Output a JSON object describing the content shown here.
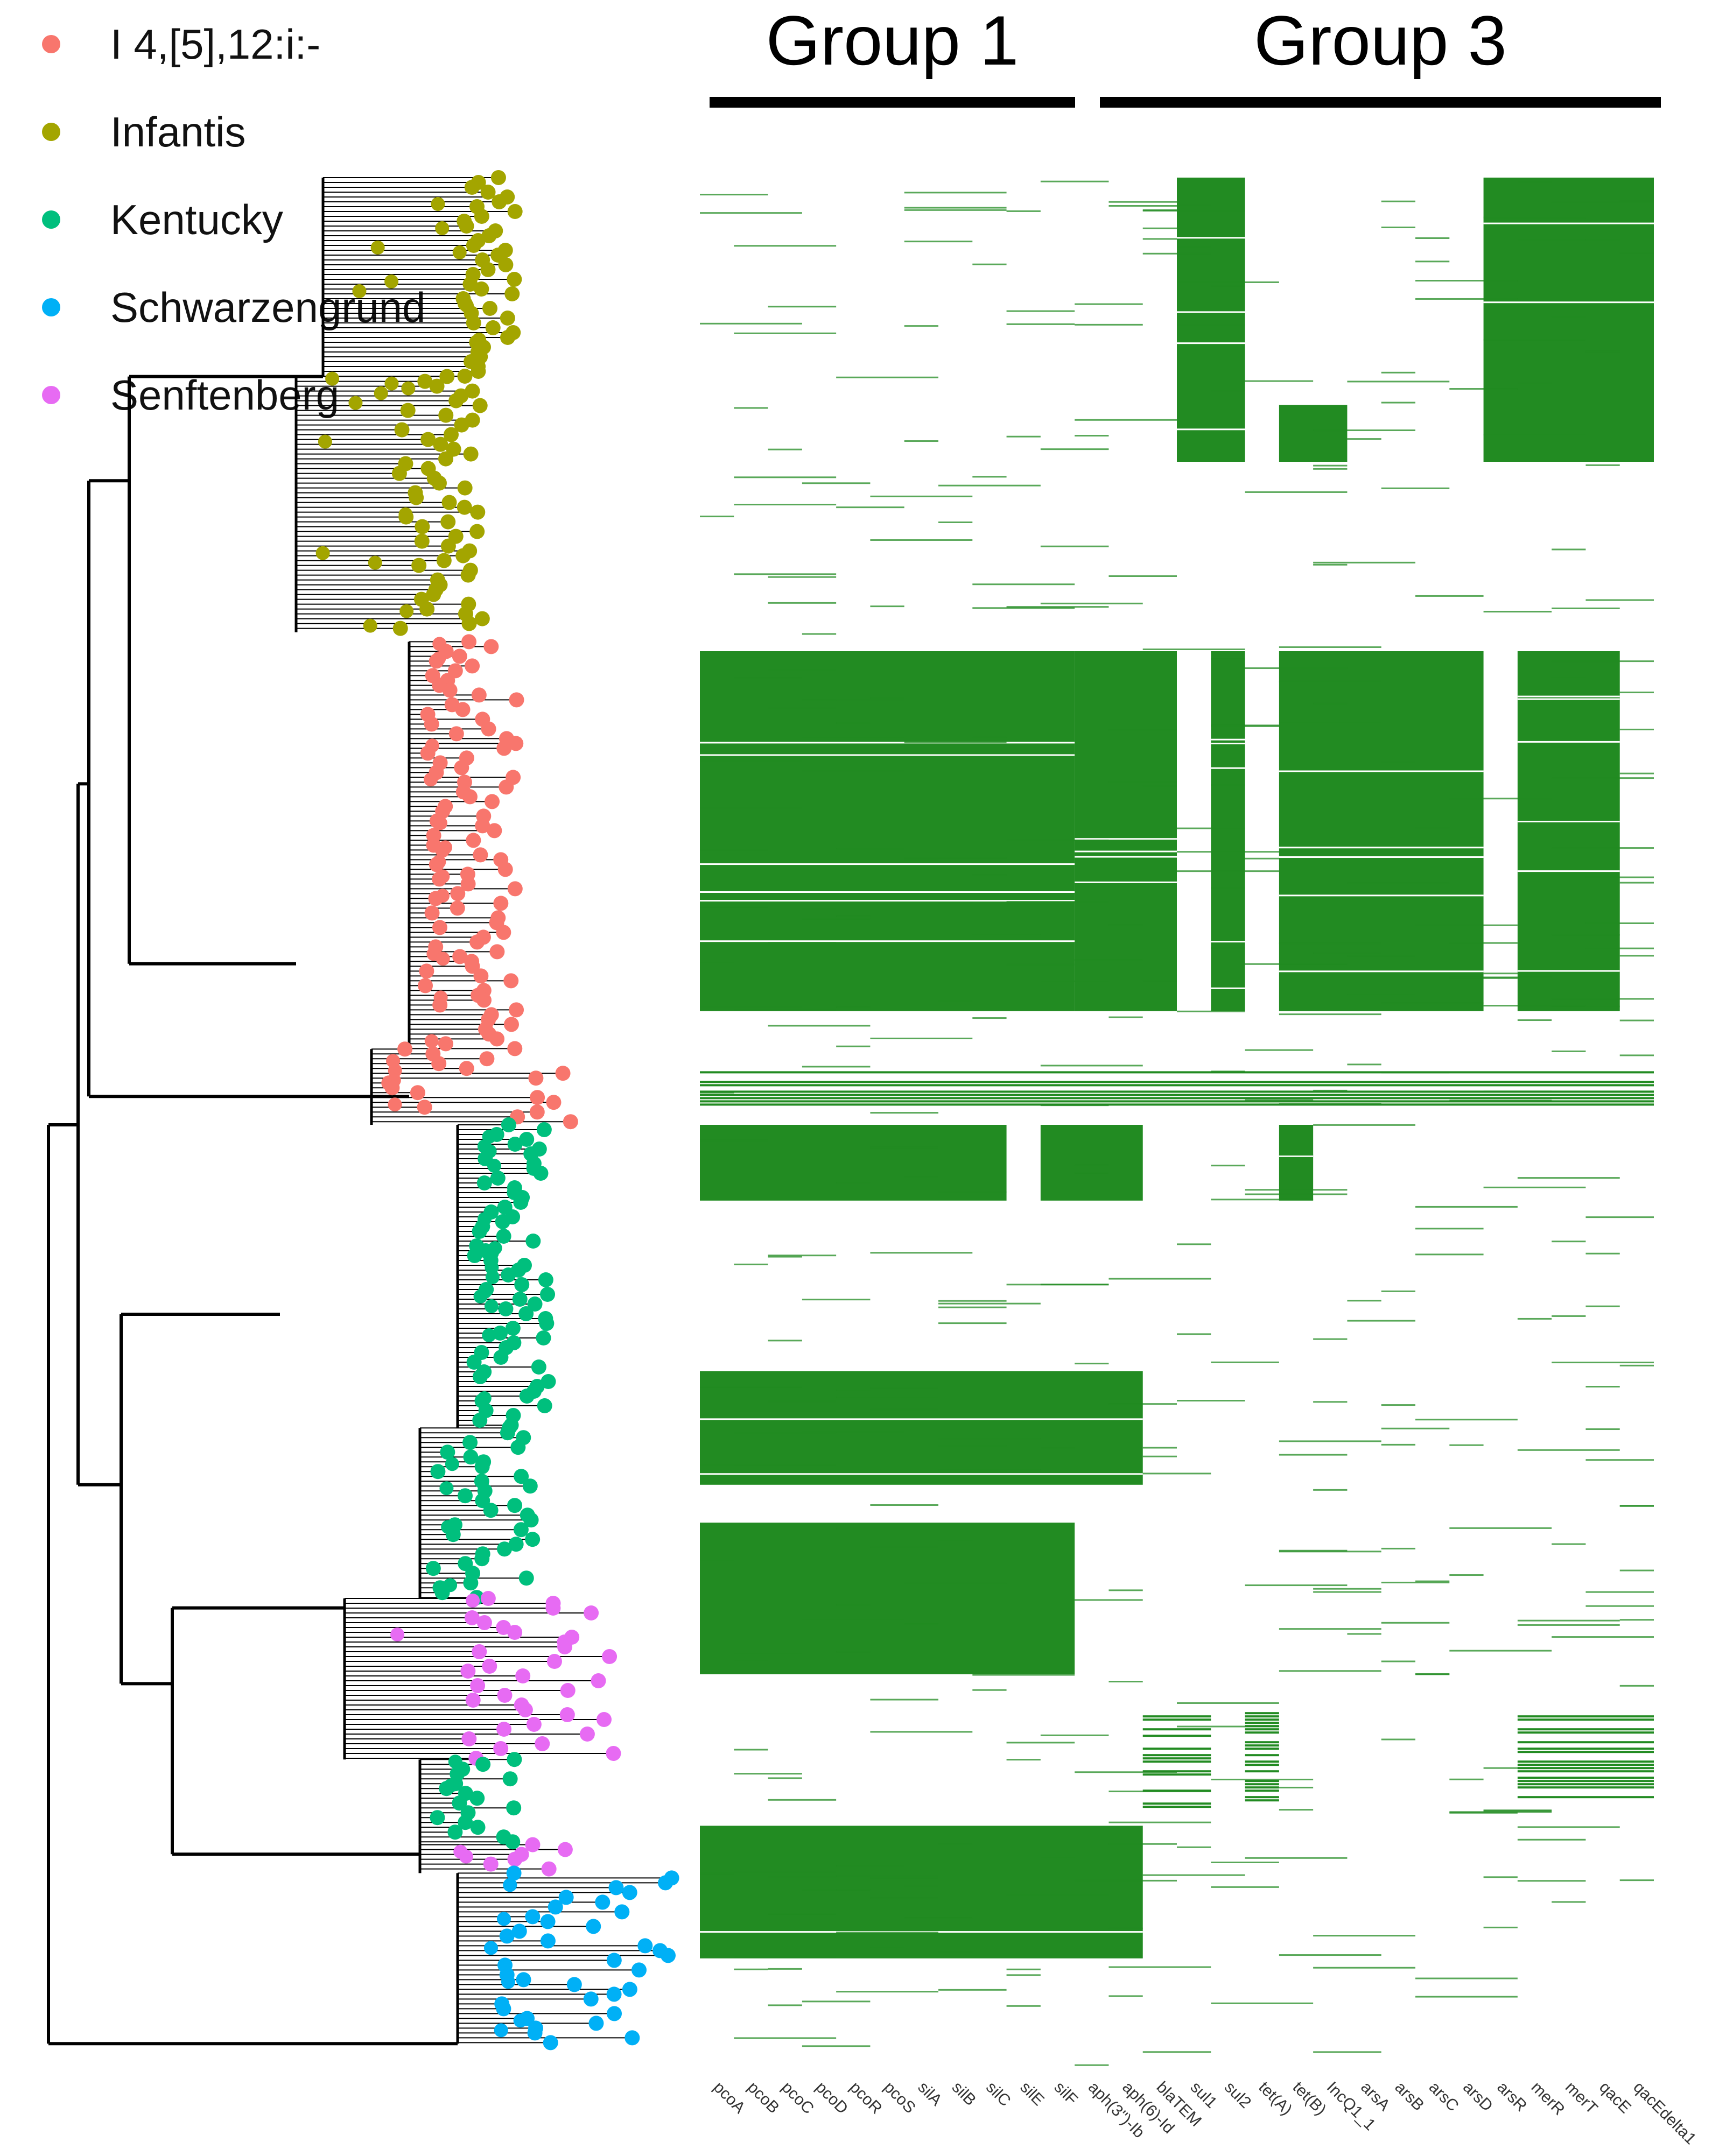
{
  "chart_data": {
    "type": "heatmap",
    "description_of_layout": "phylogenetic tree with tip points colored by serovar, aligned to a presence/absence heatmap of genes",
    "legend": [
      {
        "label": "I 4,[5],12:i:-",
        "color": "#f8766d"
      },
      {
        "label": "Infantis",
        "color": "#a3a500"
      },
      {
        "label": "Kentucky",
        "color": "#00bf7d"
      },
      {
        "label": "Schwarzengrund",
        "color": "#00b0f6"
      },
      {
        "label": "Senftenberg",
        "color": "#e76bf3"
      }
    ],
    "groups": [
      {
        "title": "Group 1",
        "first_gene": 0,
        "last_gene": 10
      },
      {
        "title": "Group 3",
        "first_gene": 11,
        "last_gene": 27
      }
    ],
    "genes": [
      "pcoA",
      "pcoB",
      "pcoC",
      "pcoD",
      "pcoR",
      "pcoS",
      "silA",
      "silB",
      "silC",
      "silE",
      "silF",
      "aph(3'')-Ib",
      "aph(6)-Id",
      "blaTEM",
      "sul1",
      "sul2",
      "tet(A)",
      "tet(B)",
      "IncQ1_1",
      "arsA",
      "arsB",
      "arsC",
      "arsD",
      "arsR",
      "merR",
      "merT",
      "qacE",
      "qacEdelta1"
    ],
    "present_color": "#228b22",
    "clade_order_top_to_bottom": [
      "Infantis",
      "I 4,[5],12:i:-",
      "Kentucky",
      "Senftenberg",
      "Kentucky",
      "Senftenberg",
      "Schwarzengrund"
    ],
    "presence_blocks": [
      {
        "rows": [
          0.0,
          0.15
        ],
        "genes": [
          14,
          15
        ],
        "density": "dense"
      },
      {
        "rows": [
          0.12,
          0.15
        ],
        "genes": [
          17,
          18
        ],
        "density": "dense"
      },
      {
        "rows": [
          0.0,
          0.15
        ],
        "genes": [
          23,
          24,
          25,
          26,
          27
        ],
        "density": "dense"
      },
      {
        "rows": [
          0.25,
          0.44
        ],
        "genes": [
          0,
          1,
          2,
          3,
          4,
          5,
          6,
          7,
          8,
          9,
          10
        ],
        "density": "dense"
      },
      {
        "rows": [
          0.25,
          0.44
        ],
        "genes": [
          11,
          12,
          13,
          15,
          17,
          18,
          19,
          20,
          21,
          22,
          24,
          25,
          26
        ],
        "density": "dense"
      },
      {
        "rows": [
          0.47,
          0.49
        ],
        "genes": [
          0,
          1,
          2,
          3,
          4,
          5,
          6,
          7,
          8,
          9,
          10,
          11,
          12,
          13,
          14,
          15,
          16,
          17,
          18,
          19,
          20,
          21,
          22,
          23,
          24,
          25,
          26,
          27
        ],
        "density": "partial"
      },
      {
        "rows": [
          0.5,
          0.54
        ],
        "genes": [
          0,
          1,
          2,
          3,
          4,
          5,
          6,
          7,
          8,
          10,
          11,
          12,
          17
        ],
        "density": "dense"
      },
      {
        "rows": [
          0.63,
          0.69
        ],
        "genes": [
          0,
          1,
          2,
          3,
          4,
          5,
          6,
          7,
          8,
          9,
          10,
          11,
          12
        ],
        "density": "dense"
      },
      {
        "rows": [
          0.71,
          0.79
        ],
        "genes": [
          0,
          1,
          2,
          3,
          4,
          5,
          6,
          7,
          8,
          9,
          10
        ],
        "density": "dense"
      },
      {
        "rows": [
          0.81,
          0.86
        ],
        "genes": [
          13,
          14,
          16,
          24,
          25,
          26,
          27
        ],
        "density": "partial"
      },
      {
        "rows": [
          0.87,
          0.94
        ],
        "genes": [
          0,
          1,
          2,
          3,
          4,
          5,
          6,
          7,
          8,
          9,
          10,
          11,
          12
        ],
        "density": "dense"
      }
    ]
  }
}
